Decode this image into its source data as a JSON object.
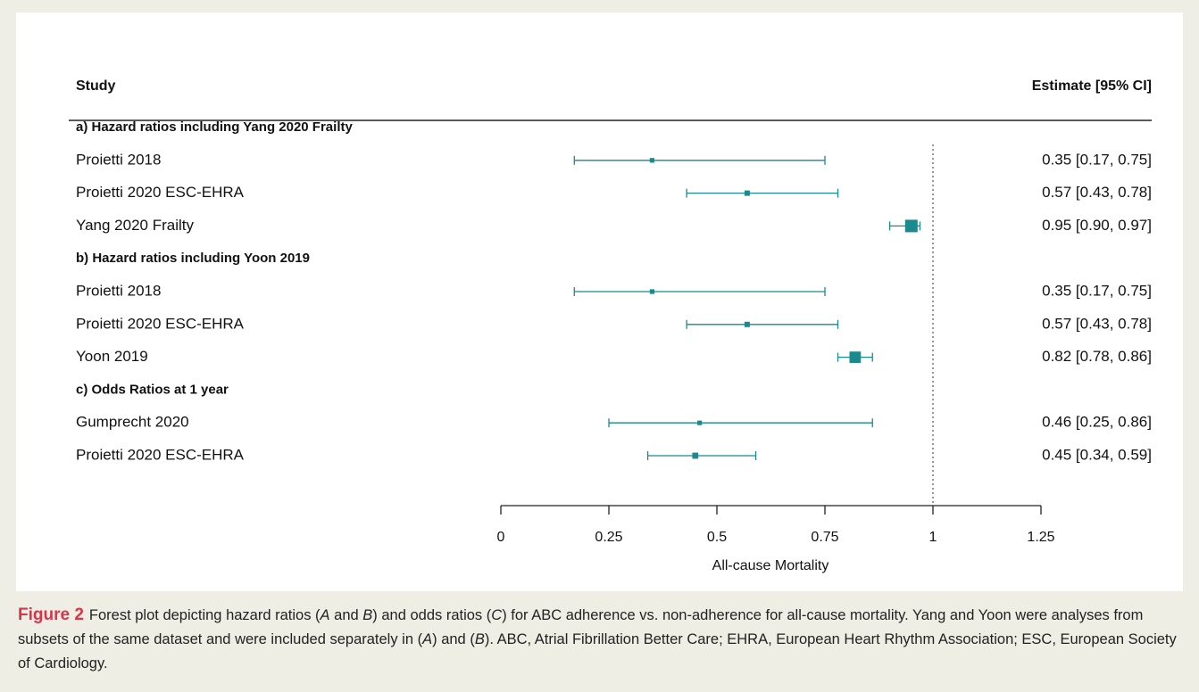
{
  "chart_data": {
    "type": "forest",
    "column_headers": [
      "Study",
      "Estimate [95% CI]"
    ],
    "x_label": "All-cause Mortality",
    "xlim": [
      0,
      1.25
    ],
    "xticks": [
      0,
      0.25,
      0.5,
      0.75,
      1,
      1.25
    ],
    "reference_line": 1,
    "color": "#1a8a8e",
    "groups": [
      {
        "title": "a) Hazard ratios including Yang 2020 Frailty",
        "studies": [
          "Proietti 2018",
          "Proietti 2020 ESC-EHRA",
          "Yang 2020 Frailty"
        ],
        "estimates": [
          0.35,
          0.57,
          0.95
        ],
        "lower": [
          0.17,
          0.43,
          0.9
        ],
        "upper": [
          0.75,
          0.78,
          0.97
        ],
        "value_labels": [
          "0.35 [0.17, 0.75]",
          "0.57 [0.43, 0.78]",
          "0.95 [0.90, 0.97]"
        ]
      },
      {
        "title": "b) Hazard ratios including Yoon 2019",
        "studies": [
          "Proietti 2018",
          "Proietti 2020 ESC-EHRA",
          "Yoon 2019"
        ],
        "estimates": [
          0.35,
          0.57,
          0.82
        ],
        "lower": [
          0.17,
          0.43,
          0.78
        ],
        "upper": [
          0.75,
          0.78,
          0.86
        ],
        "value_labels": [
          "0.35 [0.17, 0.75]",
          "0.57 [0.43, 0.78]",
          "0.82 [0.78, 0.86]"
        ]
      },
      {
        "title": "c) Odds Ratios at 1 year",
        "studies": [
          "Gumprecht 2020",
          "Proietti 2020 ESC-EHRA"
        ],
        "estimates": [
          0.46,
          0.45
        ],
        "lower": [
          0.25,
          0.34
        ],
        "upper": [
          0.86,
          0.59
        ],
        "value_labels": [
          "0.46 [0.25, 0.86]",
          "0.45 [0.34, 0.59]"
        ]
      }
    ]
  },
  "caption": {
    "label": "Figure 2",
    "segments": [
      "Forest plot depicting hazard ratios (",
      "A",
      " and ",
      "B",
      ") and odds ratios (",
      "C",
      ") for ABC adherence vs. non-adherence for all-cause mortality. Yang and Yoon were analyses from subsets of the same dataset and were included separately in (",
      "A",
      ") and (",
      "B",
      "). ABC, Atrial Fibrillation Better Care; EHRA, European Heart Rhythm Association; ESC, European Society of Cardiology."
    ]
  }
}
